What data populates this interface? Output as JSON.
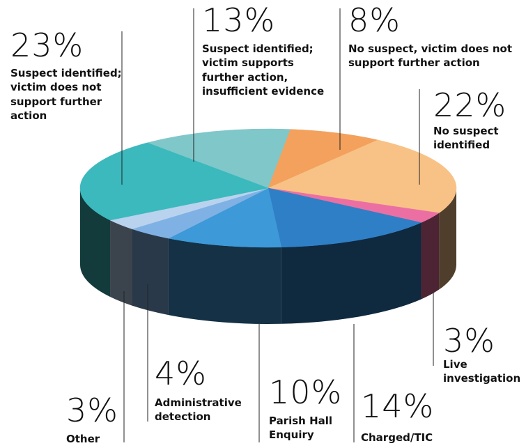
{
  "chart_data": {
    "type": "pie",
    "categories": [
      "Suspect identified; victim supports further action, insufficient evidence",
      "No suspect, victim does not support further action",
      "No suspect identified",
      "Live investigation",
      "Charged/TIC",
      "Parish Hall Enquiry",
      "Administrative detection",
      "Other",
      "Suspect identified; victim does not support further action"
    ],
    "values": [
      13,
      8,
      22,
      3,
      14,
      10,
      4,
      3,
      23
    ],
    "value_labels": [
      "13%",
      "8%",
      "22%",
      "3%",
      "14%",
      "10%",
      "4%",
      "3%",
      "23%"
    ],
    "colors": [
      "#80c7ca",
      "#f3a15d",
      "#f8c286",
      "#ec6fa3",
      "#2f7fc6",
      "#3d99d8",
      "#7fb1e4",
      "#b9d3ef",
      "#3bb9bd"
    ]
  }
}
